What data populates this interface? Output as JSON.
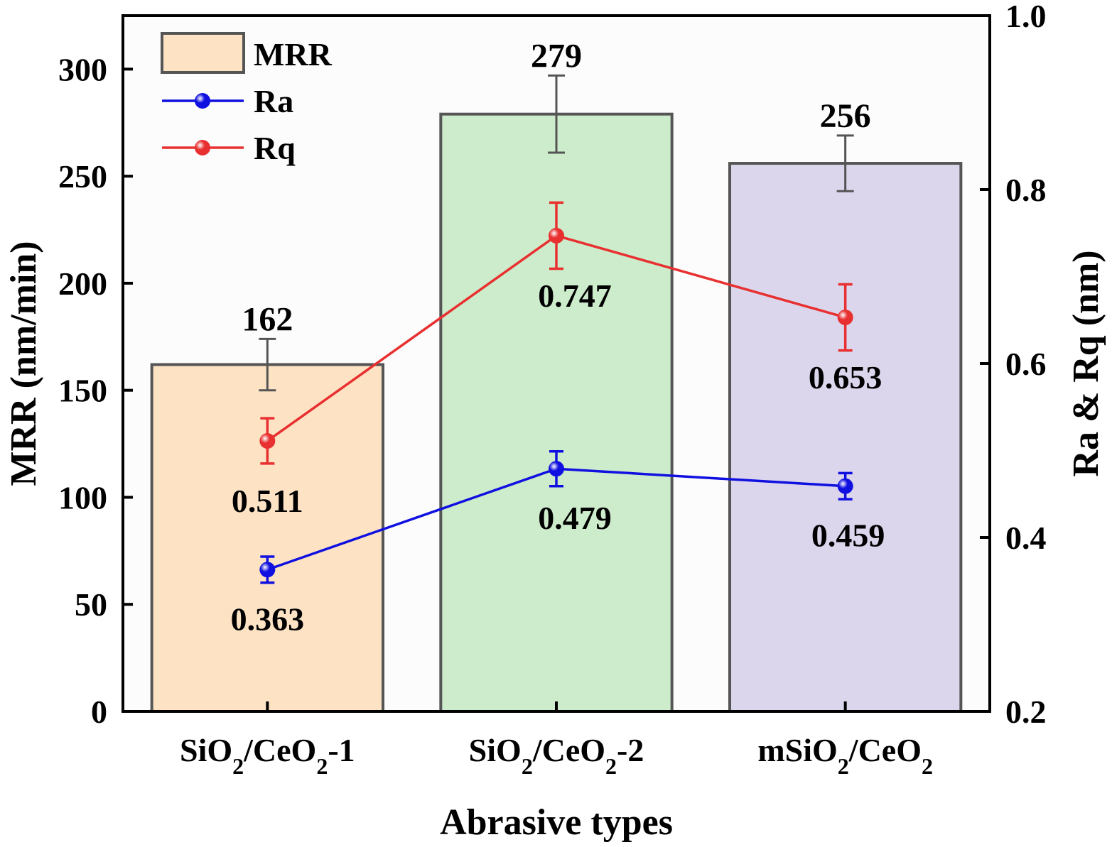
{
  "chart_data": {
    "type": "bar",
    "categories": [
      {
        "label": "SiO2/CeO2-1",
        "parts": [
          {
            "t": "SiO"
          },
          {
            "t": "2",
            "sub": true
          },
          {
            "t": "/CeO"
          },
          {
            "t": "2",
            "sub": true
          },
          {
            "t": "-1"
          }
        ]
      },
      {
        "label": "SiO2/CeO2-2",
        "parts": [
          {
            "t": "SiO"
          },
          {
            "t": "2",
            "sub": true
          },
          {
            "t": "/CeO"
          },
          {
            "t": "2",
            "sub": true
          },
          {
            "t": "-2"
          }
        ]
      },
      {
        "label": "mSiO2/CeO2",
        "parts": [
          {
            "t": "mSiO"
          },
          {
            "t": "2",
            "sub": true
          },
          {
            "t": "/CeO"
          },
          {
            "t": "2",
            "sub": true
          }
        ]
      }
    ],
    "xlabel": "Abrasive types",
    "ylabel_left": "MRR (nm/min)",
    "ylabel_right": "Ra & Rq (nm)",
    "ylim_left": [
      0,
      325
    ],
    "ylim_right": [
      0.2,
      1.0
    ],
    "yticks_left": [
      "0",
      "50",
      "100",
      "150",
      "200",
      "250",
      "300"
    ],
    "yticks_right": [
      "0.2",
      "0.4",
      "0.6",
      "0.8",
      "1.0"
    ],
    "bars": {
      "name": "MRR",
      "values": [
        162,
        279,
        256
      ],
      "errors": [
        12,
        18,
        13
      ],
      "value_labels": [
        "162",
        "279",
        "256"
      ],
      "fill_colors": [
        "#fde3c4",
        "#cdeccb",
        "#dcd6ec"
      ],
      "edge_color": "#555555"
    },
    "lines": [
      {
        "name": "Ra",
        "color": "#1010e0",
        "values": [
          0.363,
          0.479,
          0.459
        ],
        "errors": [
          0.015,
          0.02,
          0.015
        ],
        "value_labels": [
          "0.363",
          "0.479",
          "0.459"
        ]
      },
      {
        "name": "Rq",
        "color": "#e83030",
        "values": [
          0.511,
          0.747,
          0.653
        ],
        "errors": [
          0.026,
          0.038,
          0.038
        ],
        "value_labels": [
          "0.511",
          "0.747",
          "0.653"
        ]
      }
    ],
    "legend": {
      "position": "top-left",
      "entries": [
        "MRR",
        "Ra",
        "Rq"
      ]
    },
    "grid": false
  }
}
